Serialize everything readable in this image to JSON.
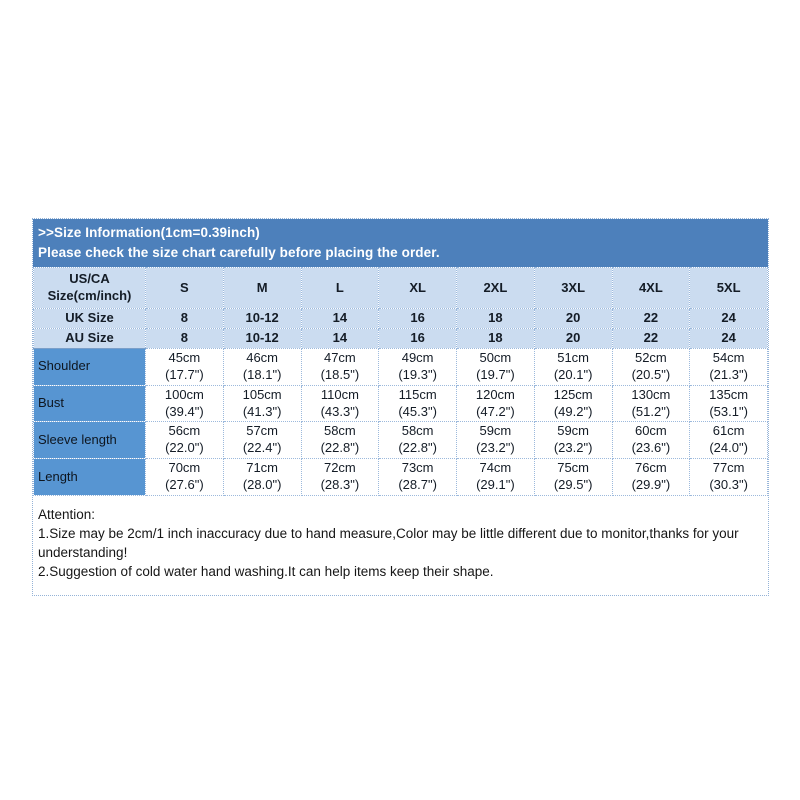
{
  "header": {
    "line1": ">>Size Information(1cm=0.39inch)",
    "line2": "Please check the size chart carefully before placing the order.",
    "bg_color": "#4d80bb",
    "text_color": "#ffffff"
  },
  "size_table": {
    "colors": {
      "header_row_bg": "#cbdcf0",
      "label_column_bg": "#5795d2",
      "data_cell_bg": "#ffffff",
      "grid_border": "#9cb9dc"
    },
    "size_columns": [
      "S",
      "M",
      "L",
      "XL",
      "2XL",
      "3XL",
      "4XL",
      "5XL"
    ],
    "header_rows": [
      {
        "label": "US/CA\nSize(cm/inch)",
        "values": [
          "S",
          "M",
          "L",
          "XL",
          "2XL",
          "3XL",
          "4XL",
          "5XL"
        ]
      },
      {
        "label": "UK Size",
        "values": [
          "8",
          "10-12",
          "14",
          "16",
          "18",
          "20",
          "22",
          "24"
        ]
      },
      {
        "label": "AU Size",
        "values": [
          "8",
          "10-12",
          "14",
          "16",
          "18",
          "20",
          "22",
          "24"
        ]
      }
    ],
    "measurement_rows": [
      {
        "label": "Shoulder",
        "values": [
          "45cm\n(17.7\")",
          "46cm\n(18.1\")",
          "47cm\n(18.5\")",
          "49cm\n(19.3\")",
          "50cm\n(19.7\")",
          "51cm\n(20.1\")",
          "52cm\n(20.5\")",
          "54cm\n(21.3\")"
        ]
      },
      {
        "label": "Bust",
        "values": [
          "100cm\n(39.4\")",
          "105cm\n(41.3\")",
          "110cm\n(43.3\")",
          "115cm\n(45.3\")",
          "120cm\n(47.2\")",
          "125cm\n(49.2\")",
          "130cm\n(51.2\")",
          "135cm\n(53.1\")"
        ]
      },
      {
        "label": "Sleeve length",
        "values": [
          "56cm\n(22.0\")",
          "57cm\n(22.4\")",
          "58cm\n(22.8\")",
          "58cm\n(22.8\")",
          "59cm\n(23.2\")",
          "59cm\n(23.2\")",
          "60cm\n(23.6\")",
          "61cm\n(24.0\")"
        ]
      },
      {
        "label": "Length",
        "values": [
          "70cm\n(27.6\")",
          "71cm\n(28.0\")",
          "72cm\n(28.3\")",
          "73cm\n(28.7\")",
          "74cm\n(29.1\")",
          "75cm\n(29.5\")",
          "76cm\n(29.9\")",
          "77cm\n(30.3\")"
        ]
      }
    ]
  },
  "attention": {
    "title": "Attention:",
    "notes": [
      "1.Size may be 2cm/1 inch inaccuracy due to hand measure,Color may be little different due to monitor,thanks for your understanding!",
      "2.Suggestion of cold water hand washing.It can help items keep their shape."
    ]
  }
}
